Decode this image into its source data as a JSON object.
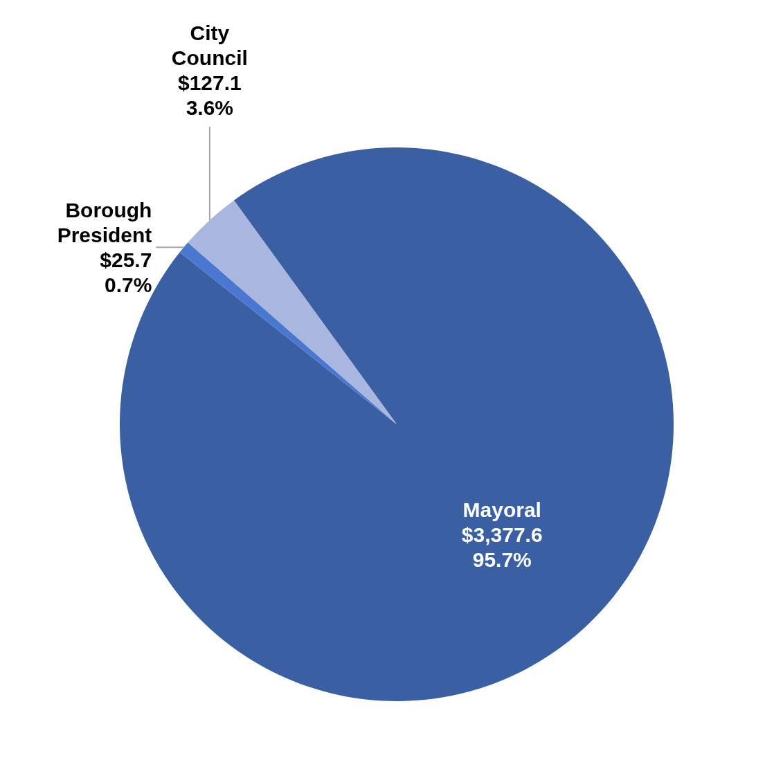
{
  "chart_data": {
    "type": "pie",
    "categories": [
      "Mayoral",
      "Borough President",
      "City Council"
    ],
    "values": [
      3377.6,
      25.7,
      127.1
    ],
    "colors": [
      "#3a5fa3",
      "#4a78d0",
      "#a9b6e0"
    ],
    "value_labels": [
      "$3,377.6\n95.7%",
      "$25.7\n0.7%",
      "$127.1\n3.6%"
    ],
    "legend": false
  }
}
